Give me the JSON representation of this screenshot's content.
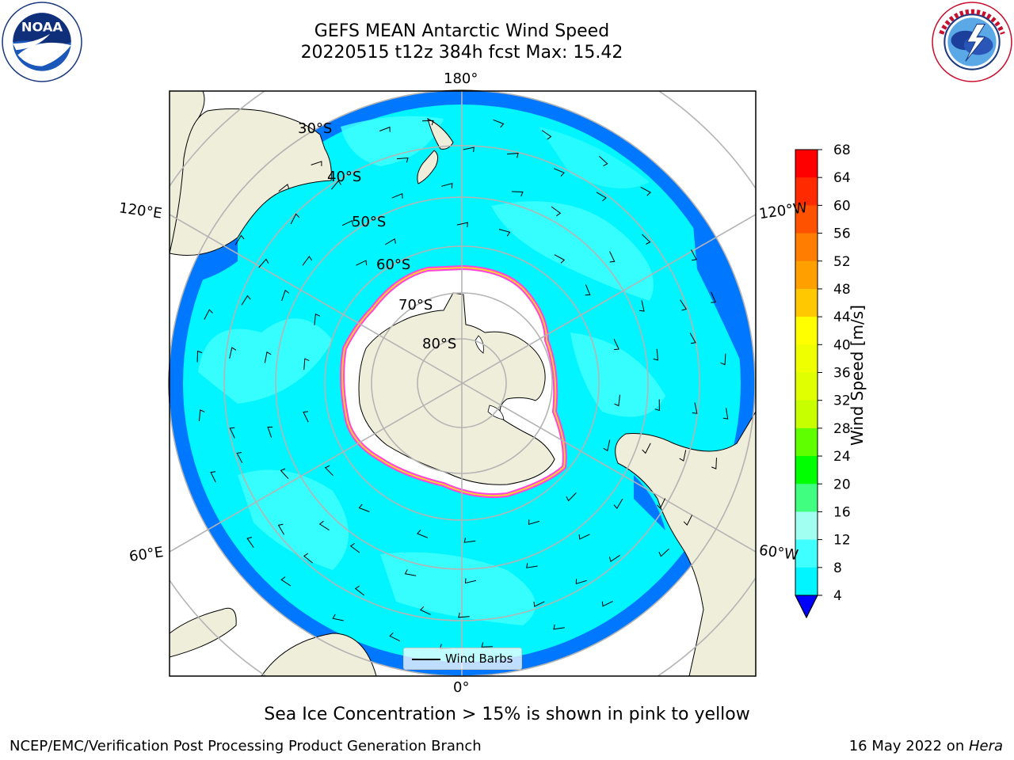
{
  "title": {
    "line1": "GEFS MEAN Antarctic Wind Speed",
    "line2": "20220515 t12z 384h fcst   Max: 15.42"
  },
  "logos": {
    "left": "noaa-logo",
    "left_text": "NOAA",
    "right": "nws-logo"
  },
  "map": {
    "projection": "south-polar-stereographic",
    "longitude_labels": [
      "180°",
      "120°E",
      "120°W",
      "60°E",
      "60°W",
      "0°"
    ],
    "latitude_labels": [
      "30°S",
      "40°S",
      "50°S",
      "60°S",
      "70°S",
      "80°S"
    ],
    "legend_label": "Wind Barbs"
  },
  "colorbar": {
    "label": "Wind Speed [m/s]",
    "ticks": [
      "68",
      "64",
      "60",
      "56",
      "52",
      "48",
      "44",
      "40",
      "36",
      "32",
      "28",
      "24",
      "20",
      "16",
      "12",
      "8",
      "4"
    ],
    "colors": [
      "#ff0000",
      "#ff2a00",
      "#ff5200",
      "#ff7d00",
      "#ff9f00",
      "#ffc800",
      "#ffff00",
      "#f0ff00",
      "#e0ff00",
      "#c8ff00",
      "#5fff00",
      "#00ff00",
      "#40ff80",
      "#a0fff0",
      "#40ffff",
      "#00f5ff",
      "#0077ff"
    ],
    "extend_color": "#0000ff"
  },
  "footer": {
    "caption": "Sea Ice Concentration > 15% is shown in pink to yellow",
    "left": "NCEP/EMC/Verification Post Processing Product Generation Branch",
    "right_date": "16 May 2022 on ",
    "right_machine": "Hera"
  }
}
